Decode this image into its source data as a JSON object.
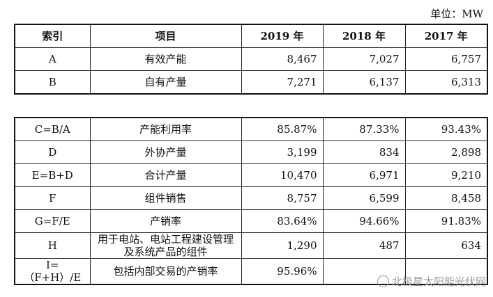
{
  "unit_label": "单位：MW",
  "header": [
    "索引",
    "项目",
    "2019 年",
    "2018 年",
    "2017 年"
  ],
  "table1": [
    [
      "A",
      "有效产能",
      "8,467",
      "7,027",
      "6,757"
    ],
    [
      "B",
      "自有产量",
      "7,271",
      "6,137",
      "6,313"
    ]
  ],
  "table2": [
    [
      "C=B/A",
      "产能利用率",
      "85.87%",
      "87.33%",
      "93.43%"
    ],
    [
      "D",
      "外协产量",
      "3,199",
      "834",
      "2,898"
    ],
    [
      "E=B+D",
      "合计产量",
      "10,470",
      "6,971",
      "9,210"
    ],
    [
      "F",
      "组件销售",
      "8,757",
      "6,599",
      "8,458"
    ],
    [
      "G=F/E",
      "产销率",
      "83.64%",
      "94.66%",
      "91.83%"
    ],
    [
      "H",
      "用于电站、电站工程建设管理及系统产品的组件",
      "1,290",
      "487",
      "634"
    ],
    [
      "I=（F+H）/E",
      "包括内部交易的产销率",
      "95.96%",
      "",
      ""
    ]
  ],
  "watermark": "北极星太阳能光伏网"
}
